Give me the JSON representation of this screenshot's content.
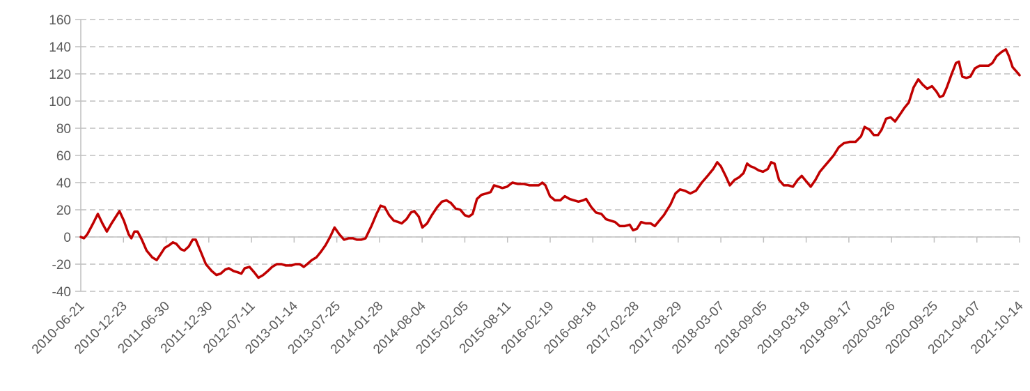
{
  "chart_data": {
    "type": "line",
    "title": "",
    "xlabel": "",
    "ylabel": "",
    "ylim": [
      -40,
      160
    ],
    "yticks": [
      -40,
      -20,
      0,
      20,
      40,
      60,
      80,
      100,
      120,
      140,
      160
    ],
    "grid": true,
    "legend": "none",
    "x_tick_labels": [
      "2010-06-21",
      "2010-12-23",
      "2011-06-30",
      "2011-12-30",
      "2012-07-11",
      "2013-01-14",
      "2013-07-25",
      "2014-01-28",
      "2014-08-04",
      "2015-02-05",
      "2015-08-11",
      "2016-02-19",
      "2016-08-18",
      "2017-02-28",
      "2017-08-29",
      "2018-03-07",
      "2018-09-05",
      "2019-03-18",
      "2019-09-17",
      "2020-03-26",
      "2020-09-25",
      "2021-04-07",
      "2021-10-14"
    ],
    "series": [
      {
        "color": "#c00000",
        "points": [
          [
            "2010-06-21",
            0
          ],
          [
            "2010-07-05",
            -1
          ],
          [
            "2010-07-20",
            2
          ],
          [
            "2010-08-15",
            10
          ],
          [
            "2010-09-05",
            17
          ],
          [
            "2010-09-25",
            10
          ],
          [
            "2010-10-15",
            4
          ],
          [
            "2010-11-05",
            10
          ],
          [
            "2010-12-10",
            19
          ],
          [
            "2010-12-30",
            12
          ],
          [
            "2011-01-20",
            2
          ],
          [
            "2011-02-01",
            -1
          ],
          [
            "2011-02-15",
            4
          ],
          [
            "2011-03-01",
            4
          ],
          [
            "2011-03-20",
            -2
          ],
          [
            "2011-04-10",
            -10
          ],
          [
            "2011-05-05",
            -15
          ],
          [
            "2011-05-25",
            -17
          ],
          [
            "2011-06-10",
            -13
          ],
          [
            "2011-06-30",
            -8
          ],
          [
            "2011-07-20",
            -6
          ],
          [
            "2011-08-05",
            -4
          ],
          [
            "2011-08-20",
            -5
          ],
          [
            "2011-09-10",
            -9
          ],
          [
            "2011-09-25",
            -10
          ],
          [
            "2011-10-15",
            -7
          ],
          [
            "2011-11-01",
            -2
          ],
          [
            "2011-11-15",
            -2
          ],
          [
            "2011-12-05",
            -10
          ],
          [
            "2011-12-30",
            -20
          ],
          [
            "2012-01-25",
            -25
          ],
          [
            "2012-02-15",
            -28
          ],
          [
            "2012-03-05",
            -27
          ],
          [
            "2012-03-25",
            -24
          ],
          [
            "2012-04-10",
            -23
          ],
          [
            "2012-05-01",
            -25
          ],
          [
            "2012-05-20",
            -26
          ],
          [
            "2012-06-05",
            -27
          ],
          [
            "2012-06-20",
            -23
          ],
          [
            "2012-07-11",
            -22
          ],
          [
            "2012-08-01",
            -26
          ],
          [
            "2012-08-20",
            -30
          ],
          [
            "2012-09-10",
            -28
          ],
          [
            "2012-10-01",
            -25
          ],
          [
            "2012-10-20",
            -22
          ],
          [
            "2012-11-10",
            -20
          ],
          [
            "2012-12-01",
            -20
          ],
          [
            "2012-12-20",
            -21
          ],
          [
            "2013-01-14",
            -21
          ],
          [
            "2013-02-01",
            -20
          ],
          [
            "2013-02-20",
            -20
          ],
          [
            "2013-03-10",
            -22
          ],
          [
            "2013-03-25",
            -20
          ],
          [
            "2013-04-15",
            -17
          ],
          [
            "2013-05-05",
            -15
          ],
          [
            "2013-05-25",
            -11
          ],
          [
            "2013-06-15",
            -6
          ],
          [
            "2013-07-05",
            0
          ],
          [
            "2013-07-25",
            7
          ],
          [
            "2013-08-15",
            2
          ],
          [
            "2013-09-05",
            -2
          ],
          [
            "2013-09-25",
            -1
          ],
          [
            "2013-10-15",
            -1
          ],
          [
            "2013-11-01",
            -2
          ],
          [
            "2013-11-20",
            -2
          ],
          [
            "2013-12-10",
            -1
          ],
          [
            "2014-01-05",
            8
          ],
          [
            "2014-01-28",
            17
          ],
          [
            "2014-02-15",
            23
          ],
          [
            "2014-03-05",
            22
          ],
          [
            "2014-03-25",
            16
          ],
          [
            "2014-04-15",
            12
          ],
          [
            "2014-05-05",
            11
          ],
          [
            "2014-05-20",
            10
          ],
          [
            "2014-06-10",
            13
          ],
          [
            "2014-06-30",
            18
          ],
          [
            "2014-07-15",
            19
          ],
          [
            "2014-08-04",
            15
          ],
          [
            "2014-08-20",
            7
          ],
          [
            "2014-09-10",
            10
          ],
          [
            "2014-10-01",
            16
          ],
          [
            "2014-10-25",
            22
          ],
          [
            "2014-11-15",
            26
          ],
          [
            "2014-12-05",
            27
          ],
          [
            "2014-12-25",
            25
          ],
          [
            "2015-01-15",
            21
          ],
          [
            "2015-02-05",
            20
          ],
          [
            "2015-02-25",
            16
          ],
          [
            "2015-03-15",
            15
          ],
          [
            "2015-04-01",
            17
          ],
          [
            "2015-04-20",
            28
          ],
          [
            "2015-05-10",
            31
          ],
          [
            "2015-06-01",
            32
          ],
          [
            "2015-06-20",
            33
          ],
          [
            "2015-07-05",
            38
          ],
          [
            "2015-07-25",
            37
          ],
          [
            "2015-08-11",
            36
          ],
          [
            "2015-09-01",
            37
          ],
          [
            "2015-09-25",
            40
          ],
          [
            "2015-10-20",
            39
          ],
          [
            "2015-11-15",
            39
          ],
          [
            "2015-12-10",
            38
          ],
          [
            "2016-01-01",
            38
          ],
          [
            "2016-01-20",
            38
          ],
          [
            "2016-02-05",
            40
          ],
          [
            "2016-02-19",
            38
          ],
          [
            "2016-03-10",
            30
          ],
          [
            "2016-04-01",
            27
          ],
          [
            "2016-04-25",
            27
          ],
          [
            "2016-05-15",
            30
          ],
          [
            "2016-06-05",
            28
          ],
          [
            "2016-06-25",
            27
          ],
          [
            "2016-07-15",
            26
          ],
          [
            "2016-08-05",
            27
          ],
          [
            "2016-08-18",
            28
          ],
          [
            "2016-09-10",
            22
          ],
          [
            "2016-10-01",
            18
          ],
          [
            "2016-10-25",
            17
          ],
          [
            "2016-11-15",
            13
          ],
          [
            "2016-12-05",
            12
          ],
          [
            "2016-12-25",
            11
          ],
          [
            "2017-01-15",
            8
          ],
          [
            "2017-02-05",
            8
          ],
          [
            "2017-02-28",
            9
          ],
          [
            "2017-03-15",
            5
          ],
          [
            "2017-04-01",
            6
          ],
          [
            "2017-04-20",
            11
          ],
          [
            "2017-05-10",
            10
          ],
          [
            "2017-06-01",
            10
          ],
          [
            "2017-06-20",
            8
          ],
          [
            "2017-07-10",
            12
          ],
          [
            "2017-07-30",
            16
          ],
          [
            "2017-08-29",
            24
          ],
          [
            "2017-09-20",
            32
          ],
          [
            "2017-10-10",
            35
          ],
          [
            "2017-11-01",
            34
          ],
          [
            "2017-11-25",
            32
          ],
          [
            "2017-12-20",
            34
          ],
          [
            "2018-01-15",
            40
          ],
          [
            "2018-02-10",
            45
          ],
          [
            "2018-03-07",
            50
          ],
          [
            "2018-03-25",
            55
          ],
          [
            "2018-04-10",
            52
          ],
          [
            "2018-05-01",
            45
          ],
          [
            "2018-05-20",
            38
          ],
          [
            "2018-06-10",
            42
          ],
          [
            "2018-07-01",
            44
          ],
          [
            "2018-07-20",
            47
          ],
          [
            "2018-08-05",
            54
          ],
          [
            "2018-08-20",
            52
          ],
          [
            "2018-09-05",
            51
          ],
          [
            "2018-09-25",
            49
          ],
          [
            "2018-10-15",
            48
          ],
          [
            "2018-11-05",
            50
          ],
          [
            "2018-11-20",
            55
          ],
          [
            "2018-12-05",
            54
          ],
          [
            "2018-12-25",
            42
          ],
          [
            "2019-01-15",
            38
          ],
          [
            "2019-02-05",
            38
          ],
          [
            "2019-02-25",
            37
          ],
          [
            "2019-03-18",
            42
          ],
          [
            "2019-04-05",
            45
          ],
          [
            "2019-04-25",
            41
          ],
          [
            "2019-05-15",
            37
          ],
          [
            "2019-06-05",
            42
          ],
          [
            "2019-06-25",
            48
          ],
          [
            "2019-07-15",
            52
          ],
          [
            "2019-08-05",
            56
          ],
          [
            "2019-08-25",
            60
          ],
          [
            "2019-09-17",
            66
          ],
          [
            "2019-10-10",
            69
          ],
          [
            "2019-11-05",
            70
          ],
          [
            "2019-12-01",
            70
          ],
          [
            "2019-12-25",
            74
          ],
          [
            "2020-01-10",
            81
          ],
          [
            "2020-02-01",
            79
          ],
          [
            "2020-02-20",
            75
          ],
          [
            "2020-03-10",
            75
          ],
          [
            "2020-03-26",
            79
          ],
          [
            "2020-04-15",
            87
          ],
          [
            "2020-05-05",
            88
          ],
          [
            "2020-05-25",
            85
          ],
          [
            "2020-06-15",
            90
          ],
          [
            "2020-07-05",
            95
          ],
          [
            "2020-07-25",
            99
          ],
          [
            "2020-08-15",
            110
          ],
          [
            "2020-09-05",
            116
          ],
          [
            "2020-09-25",
            112
          ],
          [
            "2020-10-15",
            109
          ],
          [
            "2020-11-05",
            111
          ],
          [
            "2020-11-25",
            107
          ],
          [
            "2020-12-10",
            103
          ],
          [
            "2020-12-25",
            104
          ],
          [
            "2021-01-10",
            110
          ],
          [
            "2021-02-01",
            120
          ],
          [
            "2021-02-20",
            128
          ],
          [
            "2021-03-05",
            129
          ],
          [
            "2021-03-20",
            118
          ],
          [
            "2021-04-07",
            117
          ],
          [
            "2021-04-25",
            118
          ],
          [
            "2021-05-15",
            124
          ],
          [
            "2021-06-05",
            126
          ],
          [
            "2021-06-25",
            126
          ],
          [
            "2021-07-15",
            126
          ],
          [
            "2021-08-01",
            128
          ],
          [
            "2021-08-20",
            133
          ],
          [
            "2021-09-10",
            136
          ],
          [
            "2021-09-30",
            138
          ],
          [
            "2021-10-14",
            133
          ],
          [
            "2021-10-30",
            125
          ],
          [
            "2021-11-20",
            121
          ],
          [
            "2021-11-30",
            119
          ]
        ]
      }
    ]
  }
}
